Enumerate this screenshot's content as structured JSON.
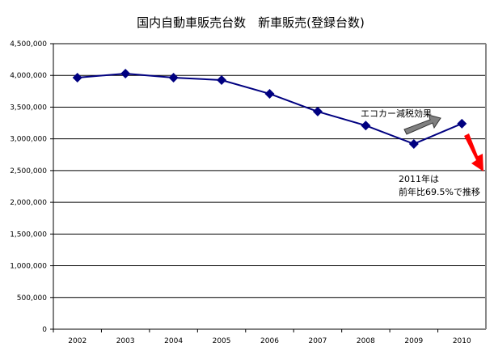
{
  "chart_data": {
    "type": "line",
    "title": "国内自動車販売台数　新車販売(登録台数)",
    "categories": [
      "2002",
      "2003",
      "2004",
      "2005",
      "2006",
      "2007",
      "2008",
      "2009",
      "2010"
    ],
    "series": [
      {
        "values": [
          3965000,
          4028000,
          3965000,
          3926000,
          3710000,
          3430000,
          3210000,
          2920000,
          3240000
        ],
        "color": "#000080",
        "marker": "diamond"
      }
    ],
    "ylim": [
      0,
      4500000
    ],
    "yticks": [
      "0",
      "500,000",
      "1,000,000",
      "1,500,000",
      "2,000,000",
      "2,500,000",
      "3,000,000",
      "3,500,000",
      "4,000,000",
      "4,500,000"
    ],
    "grid": true,
    "annotations": [
      {
        "text": "エコカー減税効果",
        "arrow_color": "#808080",
        "direction": "up-right"
      },
      {
        "lines": [
          "2011年は",
          "前年比69.5%で推移"
        ],
        "arrow_color": "#ff0000",
        "direction": "down-right"
      }
    ]
  }
}
